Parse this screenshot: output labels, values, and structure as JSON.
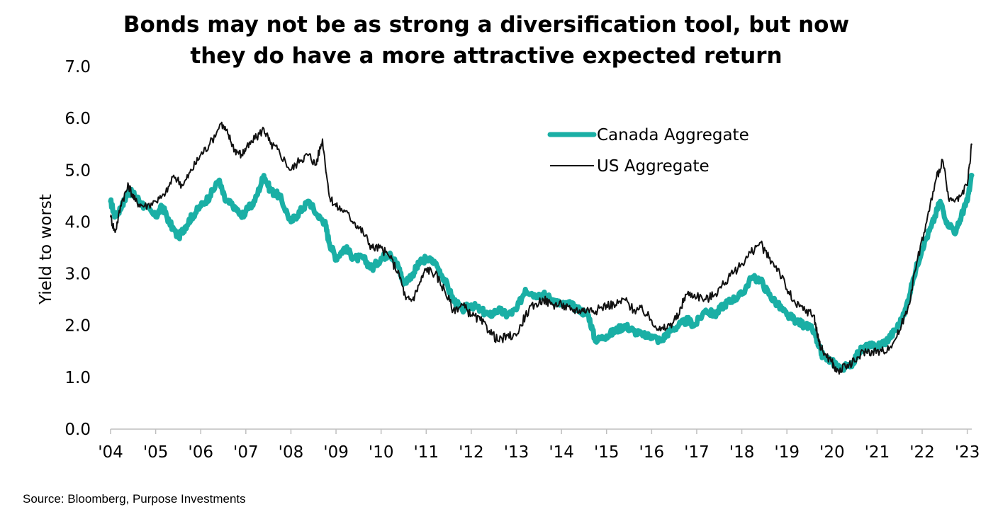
{
  "chart_data": {
    "type": "line",
    "title_lines": [
      "Bonds may not be as strong a diversification tool, but now",
      "they do have a more attractive expected return"
    ],
    "ylabel": "Yield to worst",
    "xlabel": "",
    "ylim": [
      0,
      7
    ],
    "yticks": [
      "0.0",
      "1.0",
      "2.0",
      "3.0",
      "4.0",
      "5.0",
      "6.0",
      "7.0"
    ],
    "xlim": [
      2004.0,
      2023.1
    ],
    "xticks": [
      {
        "label": "'04",
        "year": 2004
      },
      {
        "label": "'05",
        "year": 2005
      },
      {
        "label": "'06",
        "year": 2006
      },
      {
        "label": "'07",
        "year": 2007
      },
      {
        "label": "'08",
        "year": 2008
      },
      {
        "label": "'09",
        "year": 2009
      },
      {
        "label": "'10",
        "year": 2010
      },
      {
        "label": "'11",
        "year": 2011
      },
      {
        "label": "'12",
        "year": 2012
      },
      {
        "label": "'13",
        "year": 2013
      },
      {
        "label": "'14",
        "year": 2014
      },
      {
        "label": "'15",
        "year": 2015
      },
      {
        "label": "'16",
        "year": 2016
      },
      {
        "label": "'17",
        "year": 2017
      },
      {
        "label": "'18",
        "year": 2018
      },
      {
        "label": "'19",
        "year": 2019
      },
      {
        "label": "'20",
        "year": 2020
      },
      {
        "label": "'21",
        "year": 2021
      },
      {
        "label": "'22",
        "year": 2022
      },
      {
        "label": "'23",
        "year": 2023
      }
    ],
    "legend_position": "top-right",
    "grid": false,
    "series": [
      {
        "name": "Canada Aggregate",
        "color": "#1aafa5",
        "points": [
          [
            2004.0,
            4.4
          ],
          [
            2004.1,
            4.1
          ],
          [
            2004.25,
            4.3
          ],
          [
            2004.4,
            4.6
          ],
          [
            2004.55,
            4.5
          ],
          [
            2004.75,
            4.3
          ],
          [
            2005.0,
            4.1
          ],
          [
            2005.15,
            4.3
          ],
          [
            2005.3,
            4.0
          ],
          [
            2005.5,
            3.7
          ],
          [
            2005.65,
            3.9
          ],
          [
            2005.8,
            4.1
          ],
          [
            2006.0,
            4.3
          ],
          [
            2006.2,
            4.5
          ],
          [
            2006.4,
            4.8
          ],
          [
            2006.55,
            4.4
          ],
          [
            2006.75,
            4.3
          ],
          [
            2006.9,
            4.1
          ],
          [
            2007.0,
            4.2
          ],
          [
            2007.2,
            4.4
          ],
          [
            2007.4,
            4.9
          ],
          [
            2007.55,
            4.6
          ],
          [
            2007.75,
            4.5
          ],
          [
            2008.0,
            4.0
          ],
          [
            2008.2,
            4.2
          ],
          [
            2008.4,
            4.4
          ],
          [
            2008.6,
            4.1
          ],
          [
            2008.75,
            4.0
          ],
          [
            2008.85,
            3.6
          ],
          [
            2009.0,
            3.3
          ],
          [
            2009.2,
            3.5
          ],
          [
            2009.4,
            3.3
          ],
          [
            2009.6,
            3.3
          ],
          [
            2009.8,
            3.1
          ],
          [
            2010.0,
            3.3
          ],
          [
            2010.2,
            3.4
          ],
          [
            2010.4,
            3.1
          ],
          [
            2010.5,
            2.8
          ],
          [
            2010.7,
            3.0
          ],
          [
            2010.85,
            3.2
          ],
          [
            2011.0,
            3.3
          ],
          [
            2011.2,
            3.2
          ],
          [
            2011.4,
            2.9
          ],
          [
            2011.6,
            2.5
          ],
          [
            2011.8,
            2.3
          ],
          [
            2012.0,
            2.4
          ],
          [
            2012.2,
            2.3
          ],
          [
            2012.4,
            2.2
          ],
          [
            2012.6,
            2.3
          ],
          [
            2012.8,
            2.2
          ],
          [
            2013.0,
            2.3
          ],
          [
            2013.2,
            2.7
          ],
          [
            2013.4,
            2.6
          ],
          [
            2013.6,
            2.6
          ],
          [
            2013.8,
            2.5
          ],
          [
            2014.0,
            2.4
          ],
          [
            2014.2,
            2.4
          ],
          [
            2014.4,
            2.3
          ],
          [
            2014.6,
            2.2
          ],
          [
            2014.75,
            1.7
          ],
          [
            2015.0,
            1.8
          ],
          [
            2015.2,
            1.9
          ],
          [
            2015.4,
            2.0
          ],
          [
            2015.6,
            1.9
          ],
          [
            2015.8,
            1.8
          ],
          [
            2016.0,
            1.8
          ],
          [
            2016.2,
            1.7
          ],
          [
            2016.4,
            1.9
          ],
          [
            2016.6,
            2.0
          ],
          [
            2016.8,
            2.1
          ],
          [
            2016.95,
            2.0
          ],
          [
            2017.2,
            2.3
          ],
          [
            2017.4,
            2.2
          ],
          [
            2017.6,
            2.4
          ],
          [
            2017.8,
            2.5
          ],
          [
            2018.0,
            2.6
          ],
          [
            2018.2,
            2.9
          ],
          [
            2018.4,
            2.9
          ],
          [
            2018.6,
            2.6
          ],
          [
            2018.8,
            2.4
          ],
          [
            2019.0,
            2.2
          ],
          [
            2019.2,
            2.1
          ],
          [
            2019.4,
            2.0
          ],
          [
            2019.6,
            1.9
          ],
          [
            2019.7,
            1.6
          ],
          [
            2019.8,
            1.4
          ],
          [
            2020.0,
            1.3
          ],
          [
            2020.2,
            1.2
          ],
          [
            2020.4,
            1.2
          ],
          [
            2020.6,
            1.5
          ],
          [
            2020.8,
            1.6
          ],
          [
            2021.0,
            1.6
          ],
          [
            2021.2,
            1.7
          ],
          [
            2021.4,
            1.9
          ],
          [
            2021.6,
            2.2
          ],
          [
            2021.8,
            2.9
          ],
          [
            2022.0,
            3.5
          ],
          [
            2022.2,
            3.9
          ],
          [
            2022.4,
            4.4
          ],
          [
            2022.55,
            4.0
          ],
          [
            2022.75,
            3.8
          ],
          [
            2022.9,
            4.2
          ],
          [
            2023.0,
            4.4
          ],
          [
            2023.1,
            4.9
          ]
        ]
      },
      {
        "name": "US Aggregate",
        "color": "#111111",
        "points": [
          [
            2004.0,
            4.1
          ],
          [
            2004.1,
            3.8
          ],
          [
            2004.25,
            4.4
          ],
          [
            2004.4,
            4.7
          ],
          [
            2004.55,
            4.4
          ],
          [
            2004.75,
            4.3
          ],
          [
            2005.0,
            4.4
          ],
          [
            2005.2,
            4.5
          ],
          [
            2005.4,
            4.9
          ],
          [
            2005.6,
            4.7
          ],
          [
            2005.8,
            5.0
          ],
          [
            2006.0,
            5.3
          ],
          [
            2006.2,
            5.5
          ],
          [
            2006.45,
            5.9
          ],
          [
            2006.6,
            5.7
          ],
          [
            2006.75,
            5.4
          ],
          [
            2006.9,
            5.3
          ],
          [
            2007.0,
            5.4
          ],
          [
            2007.2,
            5.6
          ],
          [
            2007.4,
            5.8
          ],
          [
            2007.55,
            5.5
          ],
          [
            2007.7,
            5.4
          ],
          [
            2008.0,
            5.0
          ],
          [
            2008.2,
            5.2
          ],
          [
            2008.4,
            5.3
          ],
          [
            2008.55,
            5.1
          ],
          [
            2008.7,
            5.6
          ],
          [
            2008.85,
            4.5
          ],
          [
            2009.0,
            4.3
          ],
          [
            2009.2,
            4.2
          ],
          [
            2009.4,
            4.0
          ],
          [
            2009.6,
            3.8
          ],
          [
            2009.8,
            3.5
          ],
          [
            2010.0,
            3.5
          ],
          [
            2010.2,
            3.3
          ],
          [
            2010.4,
            3.0
          ],
          [
            2010.55,
            2.5
          ],
          [
            2010.7,
            2.5
          ],
          [
            2010.85,
            2.8
          ],
          [
            2011.0,
            3.1
          ],
          [
            2011.2,
            3.0
          ],
          [
            2011.4,
            2.7
          ],
          [
            2011.6,
            2.3
          ],
          [
            2011.8,
            2.4
          ],
          [
            2012.0,
            2.2
          ],
          [
            2012.2,
            2.1
          ],
          [
            2012.4,
            1.9
          ],
          [
            2012.6,
            1.7
          ],
          [
            2012.8,
            1.8
          ],
          [
            2013.0,
            1.8
          ],
          [
            2013.2,
            2.2
          ],
          [
            2013.4,
            2.4
          ],
          [
            2013.6,
            2.5
          ],
          [
            2013.8,
            2.4
          ],
          [
            2014.0,
            2.4
          ],
          [
            2014.2,
            2.3
          ],
          [
            2014.4,
            2.3
          ],
          [
            2014.6,
            2.3
          ],
          [
            2014.8,
            2.3
          ],
          [
            2015.0,
            2.4
          ],
          [
            2015.2,
            2.4
          ],
          [
            2015.4,
            2.5
          ],
          [
            2015.6,
            2.3
          ],
          [
            2015.8,
            2.3
          ],
          [
            2016.0,
            2.1
          ],
          [
            2016.2,
            1.9
          ],
          [
            2016.4,
            2.0
          ],
          [
            2016.6,
            2.2
          ],
          [
            2016.75,
            2.6
          ],
          [
            2016.95,
            2.6
          ],
          [
            2017.2,
            2.5
          ],
          [
            2017.4,
            2.6
          ],
          [
            2017.6,
            2.8
          ],
          [
            2017.8,
            3.0
          ],
          [
            2018.0,
            3.2
          ],
          [
            2018.2,
            3.4
          ],
          [
            2018.4,
            3.6
          ],
          [
            2018.6,
            3.3
          ],
          [
            2018.8,
            3.1
          ],
          [
            2019.0,
            2.7
          ],
          [
            2019.2,
            2.4
          ],
          [
            2019.4,
            2.3
          ],
          [
            2019.6,
            2.2
          ],
          [
            2019.7,
            1.7
          ],
          [
            2019.8,
            1.5
          ],
          [
            2020.0,
            1.3
          ],
          [
            2020.1,
            1.1
          ],
          [
            2020.3,
            1.2
          ],
          [
            2020.5,
            1.3
          ],
          [
            2020.7,
            1.5
          ],
          [
            2020.9,
            1.5
          ],
          [
            2021.1,
            1.5
          ],
          [
            2021.3,
            1.6
          ],
          [
            2021.5,
            1.9
          ],
          [
            2021.7,
            2.4
          ],
          [
            2021.9,
            3.3
          ],
          [
            2022.1,
            4.0
          ],
          [
            2022.3,
            4.8
          ],
          [
            2022.45,
            5.2
          ],
          [
            2022.6,
            4.4
          ],
          [
            2022.8,
            4.4
          ],
          [
            2023.0,
            4.7
          ],
          [
            2023.1,
            5.5
          ]
        ]
      }
    ]
  },
  "source": "Source: Bloomberg, Purpose Investments"
}
